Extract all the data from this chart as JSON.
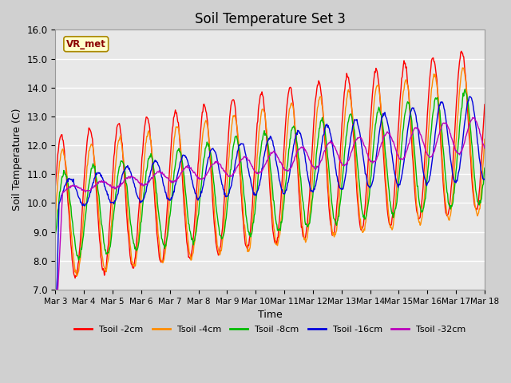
{
  "title": "Soil Temperature Set 3",
  "xlabel": "Time",
  "ylabel": "Soil Temperature (C)",
  "ylim": [
    7.0,
    16.0
  ],
  "yticks": [
    7.0,
    8.0,
    9.0,
    10.0,
    11.0,
    12.0,
    13.0,
    14.0,
    15.0,
    16.0
  ],
  "xtick_labels": [
    "Mar 3",
    "Mar 4",
    "Mar 5",
    "Mar 6",
    "Mar 7",
    "Mar 8",
    "Mar 9",
    "Mar 10",
    "Mar 11",
    "Mar 12",
    "Mar 13",
    "Mar 14",
    "Mar 15",
    "Mar 16",
    "Mar 17",
    "Mar 18"
  ],
  "legend_labels": [
    "Tsoil -2cm",
    "Tsoil -4cm",
    "Tsoil -8cm",
    "Tsoil -16cm",
    "Tsoil -32cm"
  ],
  "line_colors": [
    "#FF0000",
    "#FF8C00",
    "#00BB00",
    "#0000DD",
    "#BB00BB"
  ],
  "vr_met_label": "VR_met",
  "fig_bg_color": "#D0D0D0",
  "plot_bg_color": "#E8E8E8",
  "grid_color": "#FFFFFF",
  "n_days": 15,
  "samples_per_day": 48
}
